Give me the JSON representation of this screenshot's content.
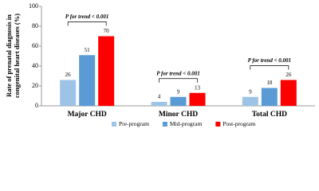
{
  "chart_data": {
    "type": "bar",
    "ylabel": [
      "Rate of prenatal diagnosis in",
      "congenital heart diseases (%)"
    ],
    "categories": [
      "Major CHD",
      "Minor CHD",
      "Total CHD"
    ],
    "series": [
      {
        "name": "Pre-program",
        "color": "#9dc3e6",
        "values": [
          26,
          4,
          9
        ]
      },
      {
        "name": "Mid-program",
        "color": "#5b9bd5",
        "values": [
          51,
          9,
          18
        ]
      },
      {
        "name": "Post-program",
        "color": "#ff0000",
        "values": [
          70,
          13,
          26
        ]
      }
    ],
    "annotations": [
      "P for trend < 0.001",
      "P for trend < 0.001",
      "P for trend < 0.001"
    ],
    "ylim": [
      0,
      100
    ],
    "yticks": [
      0,
      20,
      40,
      60,
      80,
      100
    ]
  }
}
